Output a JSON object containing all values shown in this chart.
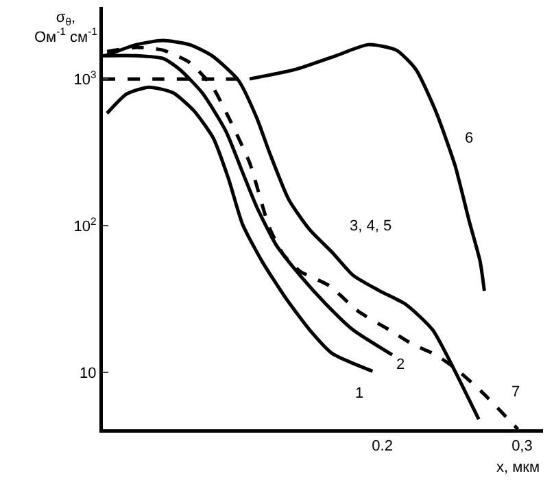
{
  "chart_data": {
    "type": "line",
    "xlabel": "x, мкм",
    "ylabel": "σ$_{θ}$,\nОм$^{-1}$ см$^{-1}$",
    "log": "y",
    "grid": false,
    "legend": false,
    "marker": "none",
    "xlim": [
      0,
      0.315
    ],
    "xticks": [
      {
        "value": 0.2,
        "label": "0.2"
      },
      {
        "value": 0.3,
        "label": "0,3"
      }
    ],
    "ylim": [
      4.1,
      3100
    ],
    "yticks": [
      {
        "value": 10,
        "label": "10"
      },
      {
        "value": 100,
        "label": "10$^{2}$"
      },
      {
        "value": 1000,
        "label": "10$^{3}$"
      }
    ],
    "series": [
      {
        "name": "1",
        "color": "#000000",
        "line_style": "solid",
        "x": [
          0.003,
          0.017,
          0.033,
          0.05,
          0.065,
          0.079,
          0.09,
          0.1,
          0.114,
          0.131,
          0.148,
          0.164,
          0.193
        ],
        "values": [
          583,
          789,
          879,
          807,
          610,
          396,
          208,
          102,
          57,
          32,
          19.5,
          13.5,
          10.2
        ]
      },
      {
        "name": "2",
        "color": "#000000",
        "line_style": "solid",
        "x": [
          0,
          0.024,
          0.043,
          0.055,
          0.071,
          0.088,
          0.1,
          0.11,
          0.124,
          0.141,
          0.16,
          0.179,
          0.207
        ],
        "values": [
          1442,
          1442,
          1380,
          1162,
          807,
          442,
          231,
          135,
          74,
          46,
          29,
          19.5,
          13.2
        ]
      },
      {
        "name": "3, 4, 5",
        "color": "#000000",
        "line_style": "solid",
        "x": [
          0.002,
          0.024,
          0.043,
          0.062,
          0.078,
          0.097,
          0.11,
          0.119,
          0.133,
          0.148,
          0.164,
          0.179,
          0.198,
          0.217,
          0.236,
          0.252,
          0.269
        ],
        "values": [
          1442,
          1713,
          1828,
          1713,
          1442,
          979,
          547,
          320,
          151,
          94,
          66,
          46,
          36,
          29,
          19.5,
          10.2,
          4.8
        ]
      },
      {
        "color": "#000000",
        "line_style": "dashed",
        "x": [
          0,
          0.043,
          0.081,
          0.105
        ],
        "values": [
          1000,
          1000,
          1000,
          1000
        ]
      },
      {
        "name": "6",
        "color": "#000000",
        "line_style": "solid",
        "x": [
          0.105,
          0.138,
          0.167,
          0.19,
          0.21,
          0.224,
          0.238,
          0.252,
          0.262,
          0.27,
          0.273
        ],
        "values": [
          1000,
          1162,
          1442,
          1713,
          1571,
          1162,
          610,
          258,
          109,
          57,
          36
        ]
      },
      {
        "name": "7",
        "color": "#000000",
        "line_style": "dashed",
        "x": [
          0.003,
          0.024,
          0.043,
          0.062,
          0.078,
          0.09,
          0.105,
          0.119,
          0.129,
          0.141,
          0.162,
          0.183,
          0.205,
          0.221,
          0.238,
          0.252,
          0.271,
          0.297
        ],
        "values": [
          1538,
          1640,
          1571,
          1295,
          898,
          547,
          269,
          98,
          64,
          49,
          39,
          26,
          19.5,
          15.7,
          13.2,
          10.7,
          7.4,
          4.1
        ]
      }
    ]
  }
}
